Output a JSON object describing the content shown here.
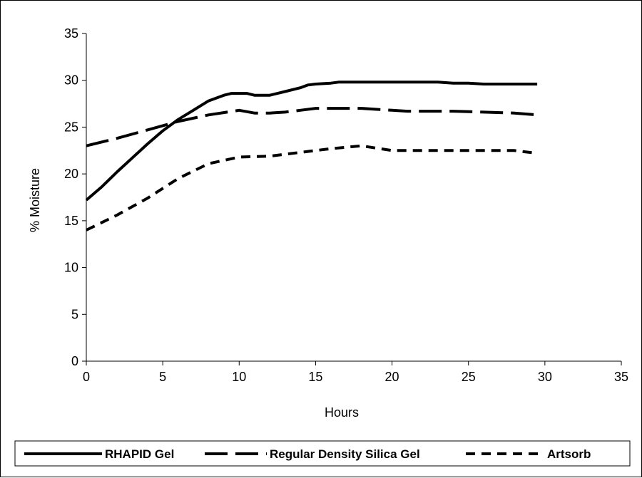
{
  "chart_data": {
    "type": "line",
    "title": "",
    "xlabel": "Hours",
    "ylabel": "% Moisture",
    "xlim": [
      0,
      35
    ],
    "ylim": [
      0,
      35
    ],
    "x_ticks": [
      0,
      5,
      10,
      15,
      20,
      25,
      30,
      35
    ],
    "y_ticks": [
      0,
      5,
      10,
      15,
      20,
      25,
      30,
      35
    ],
    "grid": false,
    "legend_position": "bottom",
    "series": [
      {
        "name": "RHAPID Gel",
        "style": "solid",
        "color": "#000000",
        "points": [
          [
            0,
            17.2
          ],
          [
            1,
            18.6
          ],
          [
            2,
            20.2
          ],
          [
            3,
            21.7
          ],
          [
            4,
            23.2
          ],
          [
            5,
            24.6
          ],
          [
            6,
            25.8
          ],
          [
            7,
            26.8
          ],
          [
            8,
            27.8
          ],
          [
            9,
            28.4
          ],
          [
            9.5,
            28.6
          ],
          [
            10.5,
            28.6
          ],
          [
            11,
            28.4
          ],
          [
            12,
            28.4
          ],
          [
            13,
            28.8
          ],
          [
            14,
            29.2
          ],
          [
            14.5,
            29.5
          ],
          [
            15,
            29.6
          ],
          [
            16,
            29.7
          ],
          [
            16.5,
            29.8
          ],
          [
            17,
            29.8
          ],
          [
            18,
            29.8
          ],
          [
            19,
            29.8
          ],
          [
            20,
            29.8
          ],
          [
            21,
            29.8
          ],
          [
            22,
            29.8
          ],
          [
            22.5,
            29.8
          ],
          [
            23,
            29.8
          ],
          [
            24,
            29.7
          ],
          [
            25,
            29.7
          ],
          [
            26,
            29.6
          ],
          [
            27,
            29.6
          ],
          [
            28,
            29.6
          ],
          [
            29,
            29.6
          ],
          [
            29.5,
            29.6
          ]
        ]
      },
      {
        "name": "Regular Density Silica Gel",
        "style": "long-dash",
        "color": "#000000",
        "points": [
          [
            0,
            23.0
          ],
          [
            2,
            23.8
          ],
          [
            4,
            24.7
          ],
          [
            6,
            25.6
          ],
          [
            8,
            26.3
          ],
          [
            10,
            26.8
          ],
          [
            11,
            26.5
          ],
          [
            12,
            26.5
          ],
          [
            13,
            26.6
          ],
          [
            14,
            26.8
          ],
          [
            15,
            27.0
          ],
          [
            16,
            27.0
          ],
          [
            17,
            27.0
          ],
          [
            18,
            27.0
          ],
          [
            19,
            26.9
          ],
          [
            20,
            26.8
          ],
          [
            21,
            26.7
          ],
          [
            22,
            26.7
          ],
          [
            24,
            26.7
          ],
          [
            26,
            26.6
          ],
          [
            28,
            26.5
          ],
          [
            29.5,
            26.3
          ]
        ]
      },
      {
        "name": "Artsorb",
        "style": "short-dash",
        "color": "#000000",
        "points": [
          [
            0,
            14.0
          ],
          [
            2,
            15.6
          ],
          [
            4,
            17.4
          ],
          [
            6,
            19.5
          ],
          [
            8,
            21.1
          ],
          [
            10,
            21.8
          ],
          [
            12,
            21.9
          ],
          [
            14,
            22.3
          ],
          [
            16,
            22.7
          ],
          [
            18,
            23.0
          ],
          [
            20,
            22.5
          ],
          [
            22,
            22.5
          ],
          [
            24,
            22.5
          ],
          [
            26,
            22.5
          ],
          [
            28,
            22.5
          ],
          [
            29.5,
            22.2
          ]
        ]
      }
    ]
  }
}
